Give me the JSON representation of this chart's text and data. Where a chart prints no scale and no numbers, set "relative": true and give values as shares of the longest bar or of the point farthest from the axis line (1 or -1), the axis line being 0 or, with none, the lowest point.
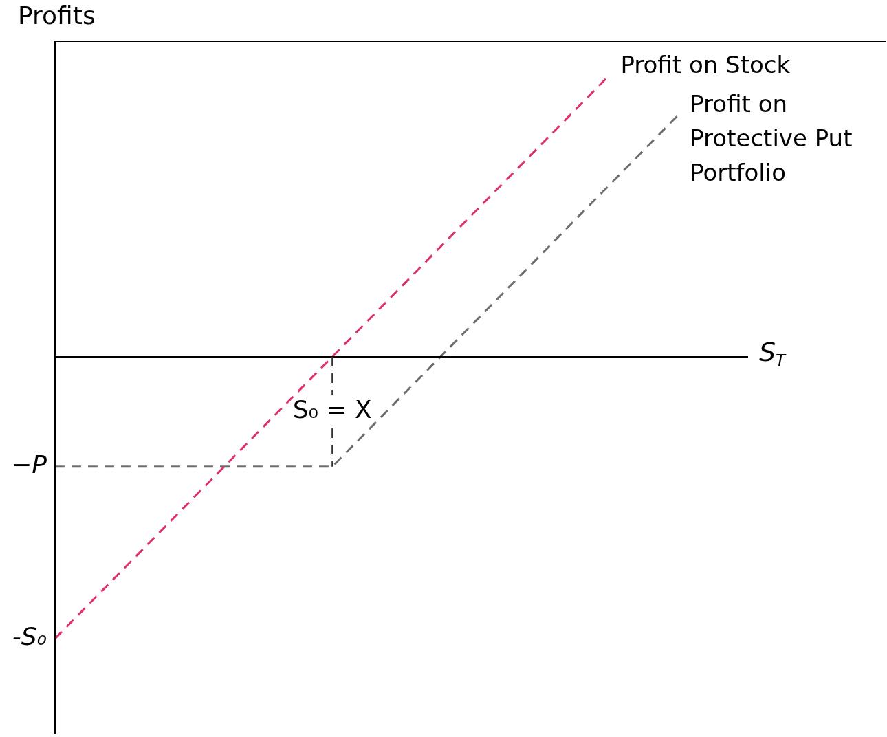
{
  "chart_data": {
    "type": "line",
    "relative": true,
    "ylabel": "Profits",
    "xlabel": "S$_{T}$",
    "tick_labels": false,
    "legend": false,
    "categories": [
      null,
      null,
      null,
      null,
      null,
      null,
      null,
      null,
      null,
      null,
      null
    ],
    "series": [
      {
        "name": "Profit on Stock",
        "color": "#e0306a",
        "line_style": "dashed",
        "values": [
          -1,
          -0.75,
          -0.5,
          -0.25,
          0,
          0.25,
          0.5,
          0.75,
          1,
          null,
          null
        ]
      },
      {
        "name": "Profit on Protective Put Portfolio",
        "color": "#6e6e6e",
        "line_style": "dashed",
        "values": [
          -0.39,
          -0.39,
          -0.39,
          -0.39,
          -0.39,
          -0.14,
          0.11,
          0.36,
          0.61,
          0.86,
          null
        ]
      }
    ],
    "annotations": [
      "S₀ = X",
      "−P",
      "-S₀"
    ]
  }
}
